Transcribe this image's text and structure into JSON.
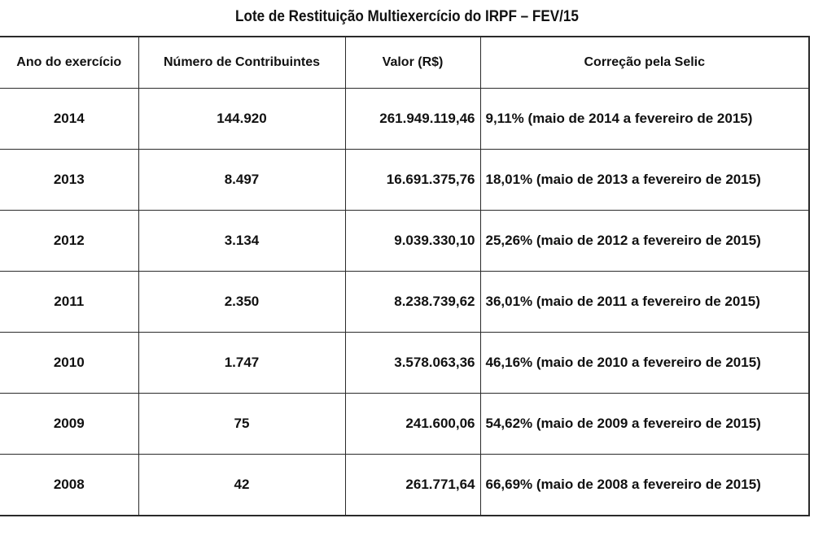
{
  "title": "Lote de Restituição Multiexercício do IRPF – FEV/15",
  "columns": [
    "Ano do exercício",
    "Número de Contribuintes",
    "Valor (R$)",
    "Correção pela Selic"
  ],
  "rows": [
    {
      "ano": "2014",
      "contribuintes": "144.920",
      "valor": "261.949.119,46",
      "correcao": "9,11% (maio de 2014 a fevereiro de 2015)"
    },
    {
      "ano": "2013",
      "contribuintes": "8.497",
      "valor": "16.691.375,76",
      "correcao": "18,01% (maio de 2013 a fevereiro de 2015)"
    },
    {
      "ano": "2012",
      "contribuintes": "3.134",
      "valor": "9.039.330,10",
      "correcao": "25,26% (maio de 2012 a fevereiro de 2015)"
    },
    {
      "ano": "2011",
      "contribuintes": "2.350",
      "valor": "8.238.739,62",
      "correcao": "36,01% (maio de 2011 a fevereiro de 2015)"
    },
    {
      "ano": "2010",
      "contribuintes": "1.747",
      "valor": "3.578.063,36",
      "correcao": "46,16% (maio de 2010 a fevereiro de 2015)"
    },
    {
      "ano": "2009",
      "contribuintes": "75",
      "valor": "241.600,06",
      "correcao": "54,62% (maio de 2009 a fevereiro de 2015)"
    },
    {
      "ano": "2008",
      "contribuintes": "42",
      "valor": "261.771,64",
      "correcao": "66,69% (maio de 2008 a fevereiro de 2015)"
    }
  ]
}
